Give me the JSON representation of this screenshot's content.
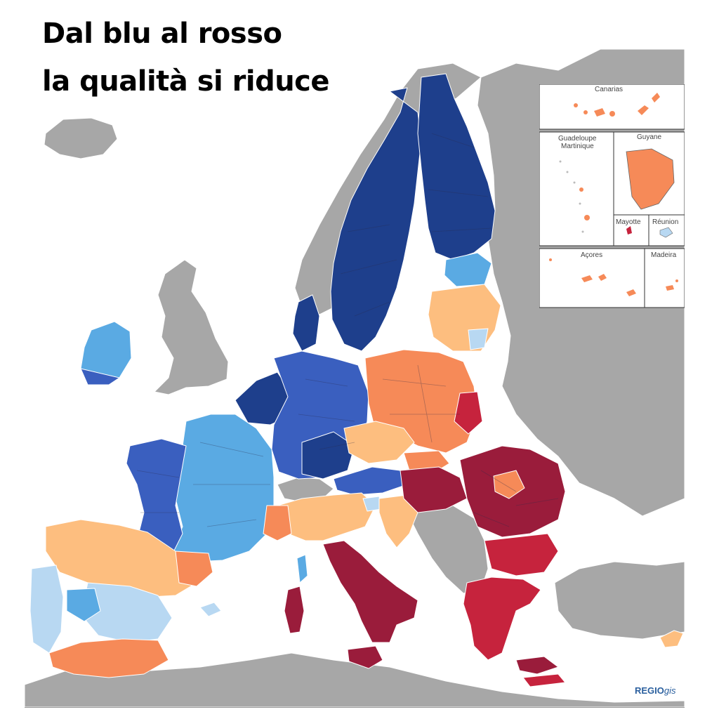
{
  "title": {
    "line1": "Dal blu al rosso",
    "line2": "la qualità si riduce"
  },
  "insets": {
    "canarias": "Canarias",
    "guadeloupe": "Guadeloupe",
    "martinique": "Martinique",
    "guyane": "Guyane",
    "mayotte": "Mayotte",
    "reunion": "Réunion",
    "acores": "Açores",
    "madeira": "Madeira"
  },
  "logo": {
    "bold": "REGIO",
    "italic": "gis"
  },
  "colors": {
    "sea": "#ffffff",
    "non_eu": "#a7a7a7",
    "dark_blue": "#1e3f8c",
    "medium_blue": "#3a5fbf",
    "light_blue": "#5aaae3",
    "pale_blue": "#b8d8f2",
    "light_orange": "#fdbe7f",
    "orange": "#f68a58",
    "red": "#c6233d",
    "dark_red": "#9a1c3b"
  }
}
